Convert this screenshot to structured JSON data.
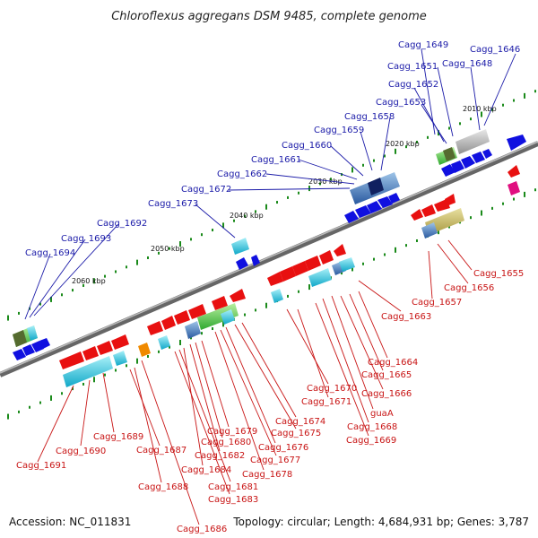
{
  "title": "Chloroflexus aggregans DSM 9485, complete genome",
  "footer": {
    "accession": "Accession: NC_011831",
    "topology": "Topology: circular; Length: 4,684,931 bp; Genes: 3,787"
  },
  "scale_labels": [
    "2010 kbp",
    "2020 kbp",
    "2030 kbp",
    "2040 kbp",
    "2050 kbp",
    "2060 kbp"
  ],
  "genes_top": [
    "Cagg_1649",
    "Cagg_1646",
    "Cagg_1651",
    "Cagg_1648",
    "Cagg_1652",
    "Cagg_1653",
    "Cagg_1658",
    "Cagg_1659",
    "Cagg_1660",
    "Cagg_1661",
    "Cagg_1662",
    "Cagg_1672",
    "Cagg_1673",
    "Cagg_1692",
    "Cagg_1693",
    "Cagg_1694"
  ],
  "genes_bottom": [
    "Cagg_1655",
    "Cagg_1656",
    "Cagg_1657",
    "Cagg_1663",
    "Cagg_1664",
    "Cagg_1665",
    "Cagg_1666",
    "Cagg_1670",
    "Cagg_1671",
    "guaA",
    "Cagg_1668",
    "Cagg_1669",
    "Cagg_1674",
    "Cagg_1675",
    "Cagg_1676",
    "Cagg_1677",
    "Cagg_1678",
    "Cagg_1679",
    "Cagg_1680",
    "Cagg_1682",
    "Cagg_1684",
    "Cagg_1681",
    "Cagg_1683",
    "Cagg_1687",
    "Cagg_1688",
    "Cagg_1689",
    "Cagg_1690",
    "Cagg_1691",
    "Cagg_1686"
  ],
  "colors": {
    "forward": "#1010e0",
    "reverse": "#e81010",
    "backbone": "#777777",
    "tick": "#1a8a1a"
  }
}
